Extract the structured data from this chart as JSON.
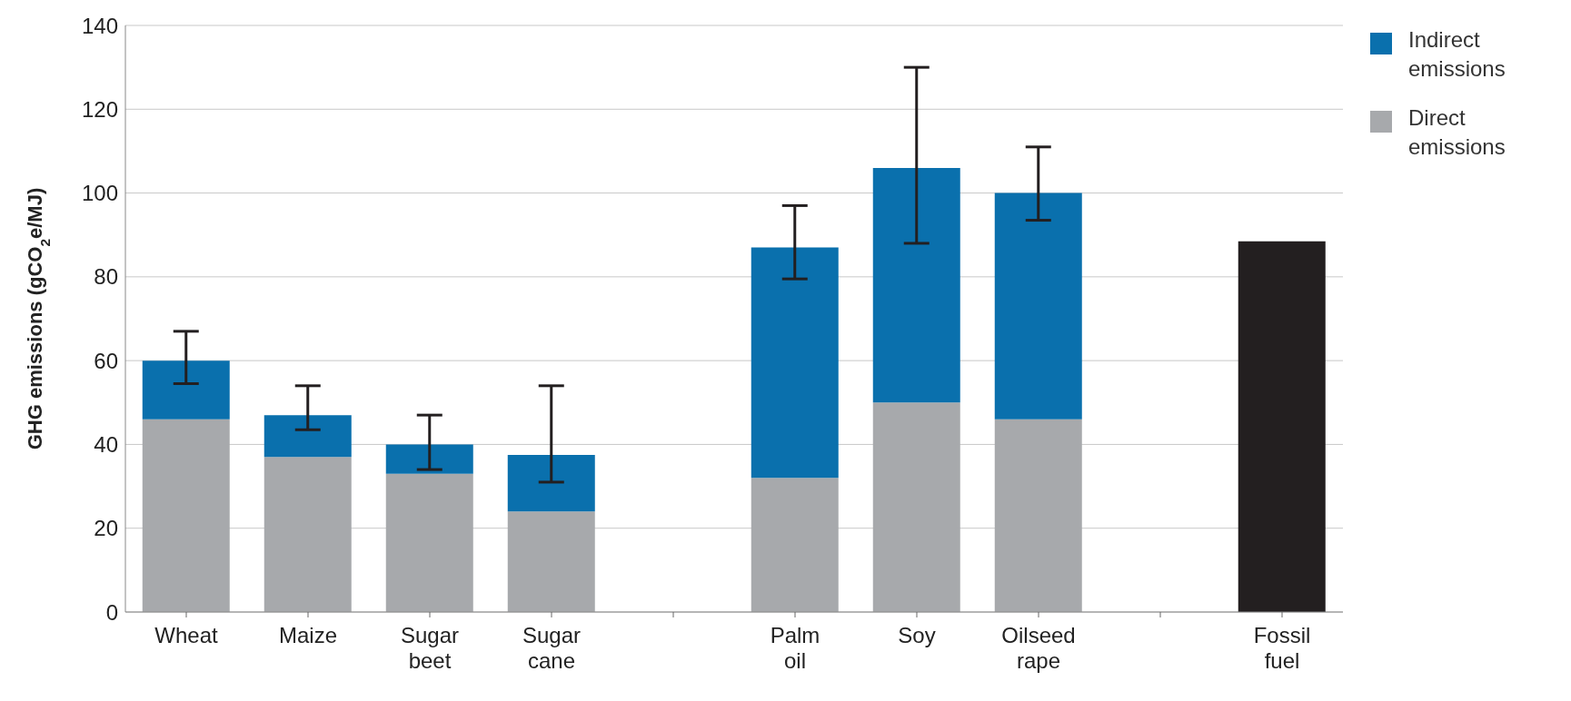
{
  "chart_data": {
    "type": "bar",
    "stacked": true,
    "ylabel": "GHG emissions (gCO$_{2}$e/MJ)",
    "categories": [
      "Wheat",
      "Maize",
      "Sugar beet",
      "Sugar cane",
      null,
      "Palm oil",
      "Soy",
      "Oilseed rape",
      null,
      "Fossil fuel"
    ],
    "series": [
      {
        "name": "Direct emissions",
        "color": "#a7a9ac",
        "values": [
          46,
          37,
          33,
          24,
          null,
          32,
          50,
          46,
          null,
          null
        ]
      },
      {
        "name": "Indirect emissions",
        "color": "#0a70ad",
        "values": [
          14,
          10,
          7,
          13.5,
          null,
          55,
          56,
          54,
          null,
          null
        ],
        "errors": [
          [
            54.5,
            67
          ],
          [
            43.5,
            54
          ],
          [
            34,
            47
          ],
          [
            31,
            54
          ],
          null,
          [
            79.5,
            97
          ],
          [
            88,
            130
          ],
          [
            93.5,
            111
          ],
          null,
          null
        ]
      },
      {
        "color": "#231f20",
        "values": [
          null,
          null,
          null,
          null,
          null,
          null,
          null,
          null,
          null,
          88.5
        ]
      }
    ],
    "ylim": [
      0,
      140
    ],
    "yticks": [
      0,
      20,
      40,
      60,
      80,
      100,
      120,
      140
    ],
    "grid": "y",
    "legend": "top right"
  }
}
